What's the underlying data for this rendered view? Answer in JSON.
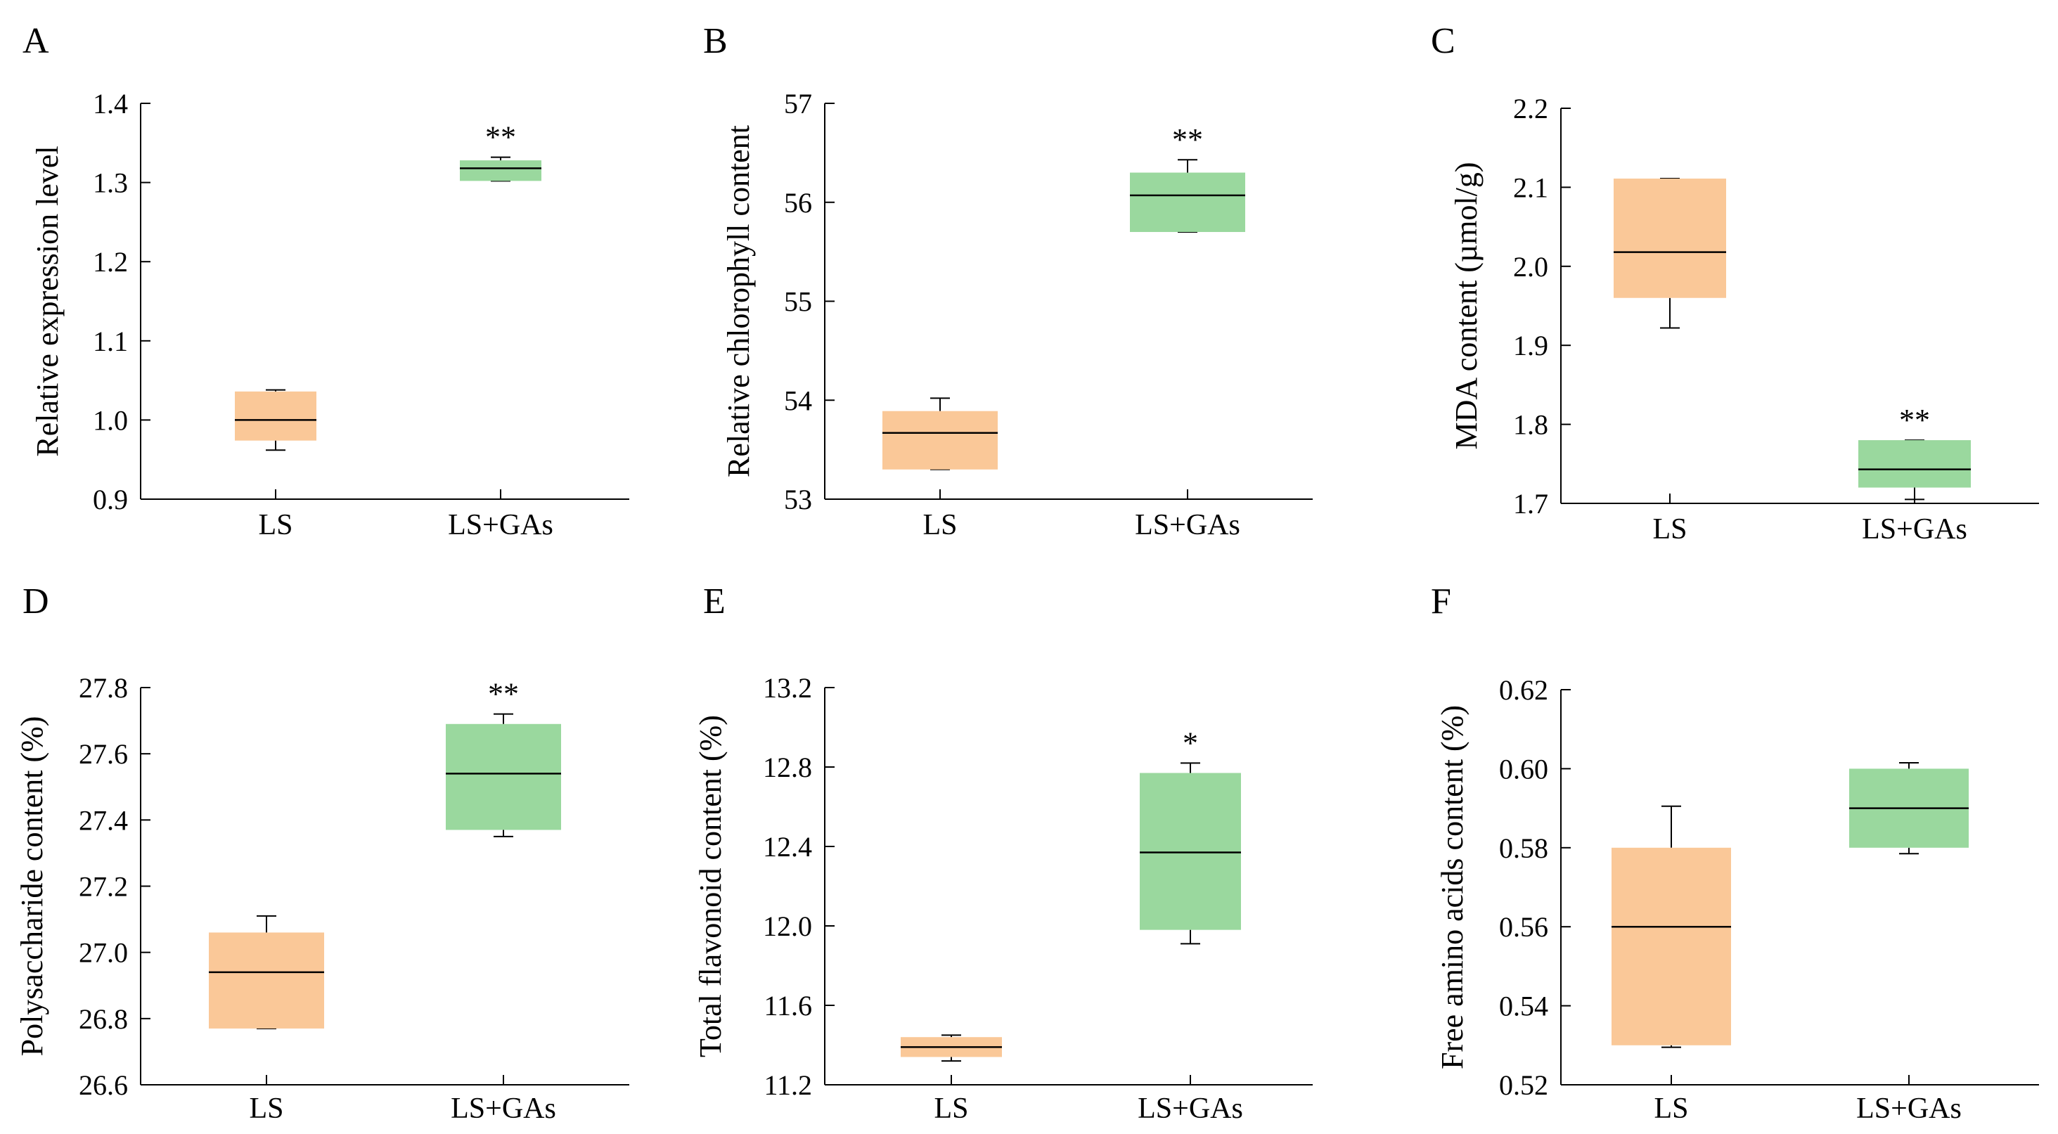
{
  "chart_data": [
    {
      "panel": "A",
      "type": "box",
      "ylabel": "Relative expression level",
      "ylim": [
        0.9,
        1.4
      ],
      "yticks": [
        "0.9",
        "1.0",
        "1.1",
        "1.2",
        "1.3",
        "1.4"
      ],
      "categories": [
        "LS",
        "LS+GAs"
      ],
      "boxes": [
        {
          "whisker_low": 0.962,
          "q1": 0.974,
          "median": 1.0,
          "q3": 1.036,
          "whisker_high": 1.038,
          "significance": ""
        },
        {
          "whisker_low": 1.302,
          "q1": 1.302,
          "median": 1.318,
          "q3": 1.328,
          "whisker_high": 1.332,
          "significance": "**"
        }
      ]
    },
    {
      "panel": "B",
      "type": "box",
      "ylabel": "Relative chlorophyll content",
      "ylim": [
        53,
        57
      ],
      "yticks": [
        "53",
        "54",
        "55",
        "56",
        "57"
      ],
      "categories": [
        "LS",
        "LS+GAs"
      ],
      "boxes": [
        {
          "whisker_low": 53.3,
          "q1": 53.3,
          "median": 53.67,
          "q3": 53.89,
          "whisker_high": 54.02,
          "significance": ""
        },
        {
          "whisker_low": 55.7,
          "q1": 55.7,
          "median": 56.07,
          "q3": 56.3,
          "whisker_high": 56.43,
          "significance": "**"
        }
      ]
    },
    {
      "panel": "C",
      "type": "box",
      "ylabel": "MDA content (µmol/g)",
      "ylim": [
        1.7,
        2.2
      ],
      "yticks": [
        "1.7",
        "1.8",
        "1.9",
        "2.0",
        "2.1",
        "2.2"
      ],
      "categories": [
        "LS",
        "LS+GAs"
      ],
      "boxes": [
        {
          "whisker_low": 1.922,
          "q1": 1.96,
          "median": 2.018,
          "q3": 2.111,
          "whisker_high": 2.111,
          "significance": ""
        },
        {
          "whisker_low": 1.705,
          "q1": 1.72,
          "median": 1.743,
          "q3": 1.78,
          "whisker_high": 1.78,
          "significance": "**"
        }
      ]
    },
    {
      "panel": "D",
      "type": "box",
      "ylabel": "Polysaccharide content (%)",
      "ylim": [
        26.6,
        27.8
      ],
      "yticks": [
        "26.6",
        "26.8",
        "27.0",
        "27.2",
        "27.4",
        "27.6",
        "27.8"
      ],
      "categories": [
        "LS",
        "LS+GAs"
      ],
      "boxes": [
        {
          "whisker_low": 26.77,
          "q1": 26.77,
          "median": 26.94,
          "q3": 27.06,
          "whisker_high": 27.11,
          "significance": ""
        },
        {
          "whisker_low": 27.35,
          "q1": 27.37,
          "median": 27.54,
          "q3": 27.69,
          "whisker_high": 27.72,
          "significance": "**"
        }
      ]
    },
    {
      "panel": "E",
      "type": "box",
      "ylabel": "Total flavonoid content (%)",
      "ylim": [
        11.2,
        13.2
      ],
      "yticks": [
        "11.2",
        "11.6",
        "12.0",
        "12.4",
        "12.8",
        "13.2"
      ],
      "categories": [
        "LS",
        "LS+GAs"
      ],
      "boxes": [
        {
          "whisker_low": 11.32,
          "q1": 11.34,
          "median": 11.39,
          "q3": 11.44,
          "whisker_high": 11.45,
          "significance": ""
        },
        {
          "whisker_low": 11.91,
          "q1": 11.98,
          "median": 12.37,
          "q3": 12.77,
          "whisker_high": 12.82,
          "significance": "*"
        }
      ]
    },
    {
      "panel": "F",
      "type": "box",
      "ylabel": "Free amino acids content (%)",
      "ylim": [
        0.52,
        0.62
      ],
      "yticks": [
        "0.52",
        "0.54",
        "0.56",
        "0.58",
        "0.60",
        "0.62"
      ],
      "categories": [
        "LS",
        "LS+GAs"
      ],
      "boxes": [
        {
          "whisker_low": 0.5295,
          "q1": 0.53,
          "median": 0.56,
          "q3": 0.58,
          "whisker_high": 0.5905,
          "significance": ""
        },
        {
          "whisker_low": 0.5785,
          "q1": 0.58,
          "median": 0.59,
          "q3": 0.6,
          "whisker_high": 0.6015,
          "significance": ""
        }
      ]
    }
  ],
  "colors": {
    "ls_box": "#FAC898",
    "gas_box": "#9AD89E",
    "stroke": "#000000"
  }
}
